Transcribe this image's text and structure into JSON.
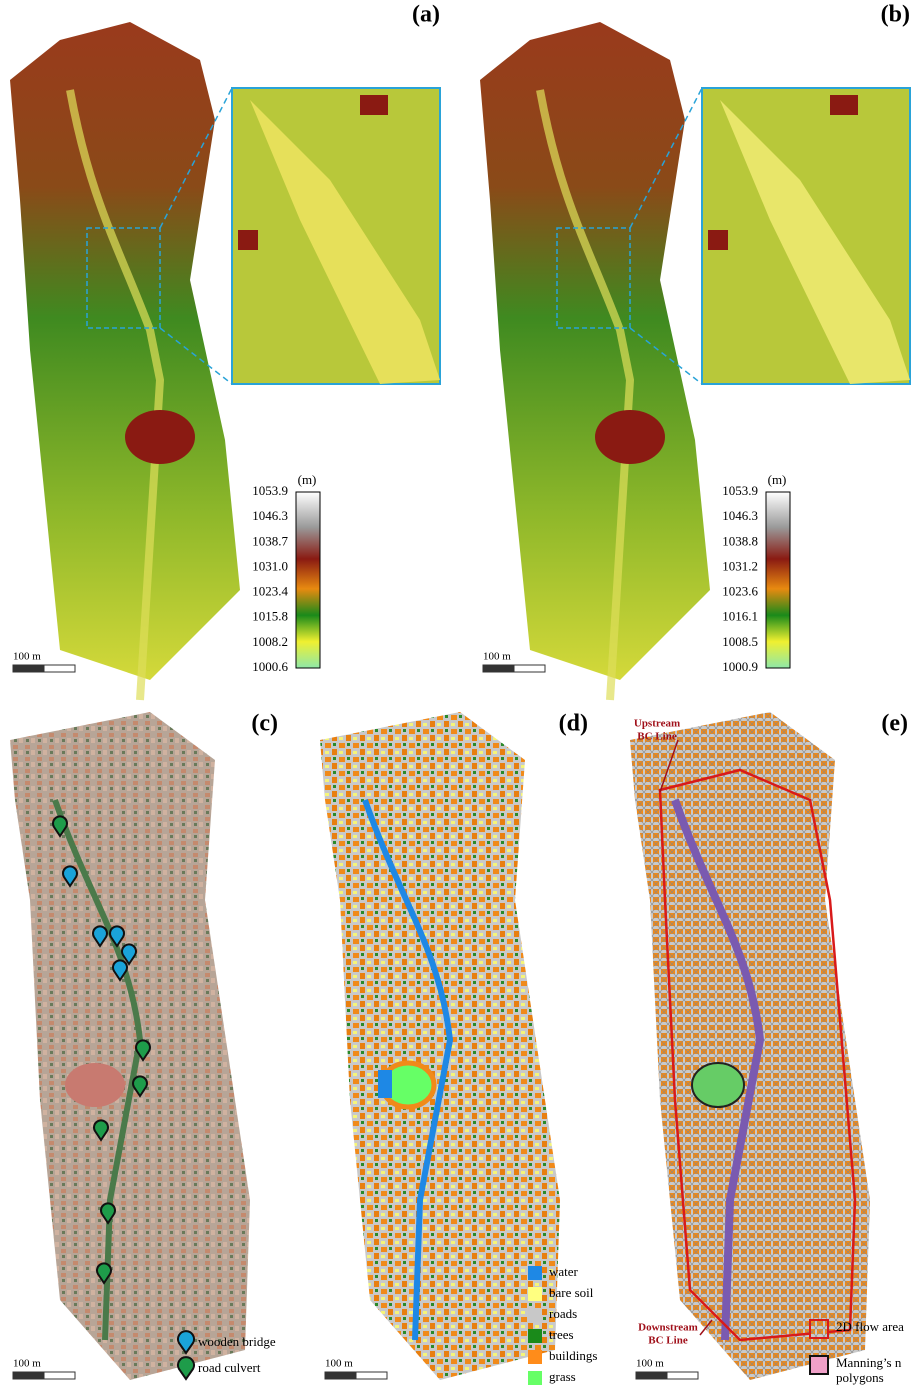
{
  "panels": [
    {
      "label": "(a)",
      "colorbar": {
        "unit": "(m)",
        "ticks": [
          "1053.9",
          "1046.3",
          "1038.7",
          "1031.0",
          "1023.4",
          "1015.8",
          "1008.2",
          "1000.6"
        ]
      },
      "scale_bar": "100 m"
    },
    {
      "label": "(b)",
      "colorbar": {
        "unit": "(m)",
        "ticks": [
          "1053.9",
          "1046.3",
          "1038.8",
          "1031.2",
          "1023.6",
          "1016.1",
          "1008.5",
          "1000.9"
        ]
      },
      "scale_bar": "100 m"
    },
    {
      "label": "(c)",
      "legend": [
        "wooden bridge",
        "road culvert"
      ],
      "scale_bar": "100 m"
    },
    {
      "label": "(d)",
      "legend": [
        "water",
        "bare soil",
        "roads",
        "trees",
        "buildings",
        "grass"
      ],
      "scale_bar": "100 m"
    },
    {
      "label": "(e)",
      "annotations": {
        "upstream": [
          "Upstream",
          "BC Line"
        ],
        "downstream": [
          "Downstream",
          "BC Line"
        ]
      },
      "legend": [
        [
          "2D flow area"
        ],
        [
          "Manning’s n",
          "polygons"
        ]
      ],
      "scale_bar": "100 m"
    }
  ]
}
